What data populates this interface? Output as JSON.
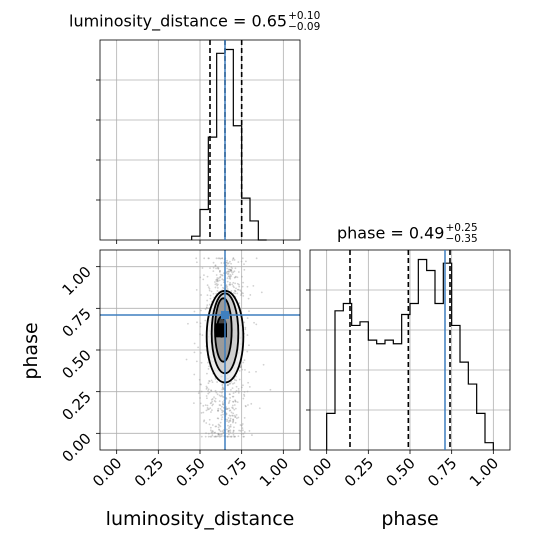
{
  "chart_data": {
    "type": "corner",
    "parameters": [
      "luminosity_distance",
      "phase"
    ],
    "truths": {
      "luminosity_distance": 0.65,
      "phase": 0.71
    },
    "truth_color": "#3f7fbf",
    "titles": {
      "luminosity_distance": {
        "label": "luminosity_distance = 0.65",
        "plus": "+0.10",
        "minus": "−0.09"
      },
      "phase": {
        "label": "phase = 0.49",
        "plus": "+0.25",
        "minus": "−0.35"
      }
    },
    "axis_labels": {
      "x1": "luminosity_distance",
      "x2": "phase",
      "y": "phase"
    },
    "ticks": [
      "0.00",
      "0.25",
      "0.50",
      "0.75",
      "1.00"
    ],
    "tick_values": [
      0.0,
      0.25,
      0.5,
      0.75,
      1.0
    ],
    "xlim": [
      -0.1,
      1.1
    ],
    "ylim": [
      -0.1,
      1.1
    ],
    "grid": true,
    "hist_luminosity_distance": {
      "bin_edges": [
        0.45,
        0.5,
        0.55,
        0.6,
        0.65,
        0.7,
        0.75,
        0.8,
        0.85,
        0.9
      ],
      "counts": [
        1,
        8,
        27,
        49,
        50,
        30,
        11,
        5,
        0
      ],
      "quantiles": [
        0.56,
        0.65,
        0.75
      ]
    },
    "hist_phase": {
      "bin_edges": [
        0.0,
        0.05,
        0.1,
        0.15,
        0.2,
        0.25,
        0.3,
        0.35,
        0.4,
        0.45,
        0.5,
        0.55,
        0.6,
        0.65,
        0.7,
        0.75,
        0.8,
        0.85,
        0.9,
        0.95,
        1.0
      ],
      "counts": [
        10,
        38,
        40,
        34,
        35,
        30,
        29,
        30,
        29,
        37,
        40,
        52,
        49,
        40,
        51,
        34,
        24,
        18,
        10,
        2
      ],
      "quantiles": [
        0.14,
        0.49,
        0.74
      ]
    },
    "contours": [
      {
        "cx": 0.65,
        "cy": 0.58,
        "rx": 0.11,
        "ry": 0.55
      },
      {
        "cx": 0.65,
        "cy": 0.6,
        "rx": 0.08,
        "ry": 0.48
      },
      {
        "cx": 0.64,
        "cy": 0.62,
        "rx": 0.05,
        "ry": 0.38
      },
      {
        "cx": 0.63,
        "cy": 0.64,
        "rx": 0.025,
        "ry": 0.12
      }
    ]
  }
}
